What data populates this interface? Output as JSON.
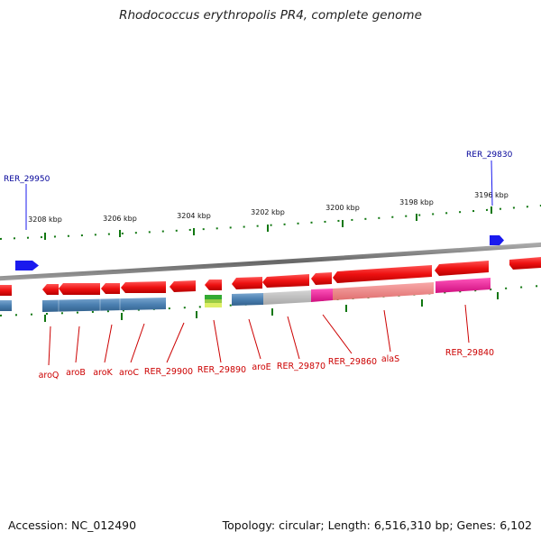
{
  "title": "Rhodococcus erythropolis PR4, complete genome",
  "footer": {
    "accession": "Accession: NC_012490",
    "topology": "Topology: circular; Length: 6,516,310 bp; Genes: 6,102"
  },
  "colors": {
    "backbone": "#777777",
    "forward_gene": "#ee1111",
    "reverse_gene": "#ee1111",
    "cds_blue": "#4a7fb0",
    "cds_grey": "#b8b8b8",
    "cds_magenta": "#ee2299",
    "cds_pink": "#f08888",
    "cds_green": "#66aa33",
    "marker_blue": "#1a1aee",
    "tick_green": "#117711",
    "gene_label": "#cc0000",
    "feature_label": "#000099"
  },
  "scale_labels": [
    "3208 kbp",
    "3206 kbp",
    "3204 kbp",
    "3202 kbp",
    "3200 kbp",
    "3198 kbp",
    "3196 kbp"
  ],
  "top_features": [
    "RER_29950",
    "RER_29830"
  ],
  "gene_labels": [
    "aroQ",
    "aroB",
    "aroK",
    "aroC",
    "RER_29900",
    "RER_29890",
    "aroE",
    "RER_29870",
    "RER_29860",
    "alaS",
    "RER_29840"
  ]
}
